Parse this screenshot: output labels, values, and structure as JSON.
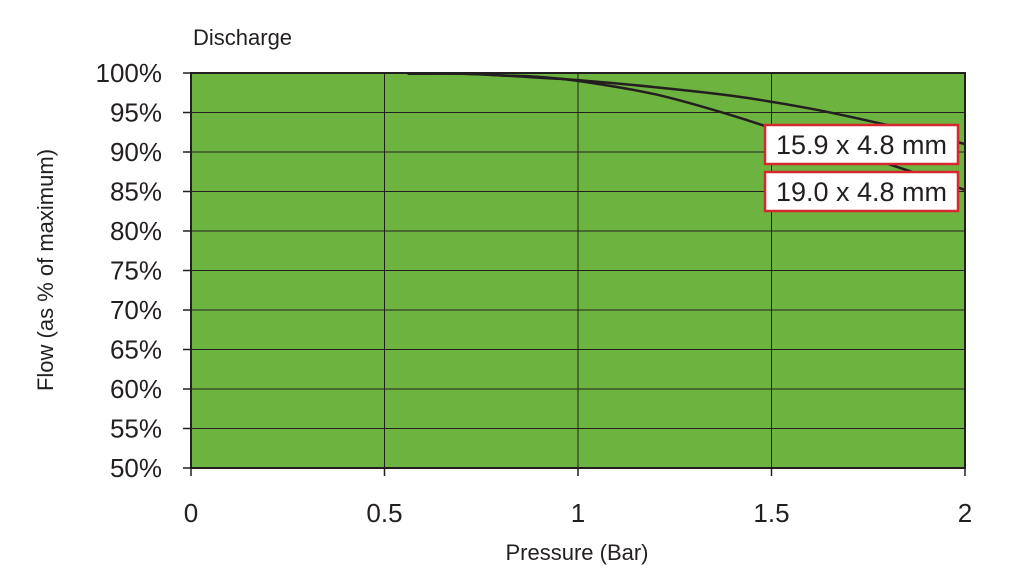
{
  "chart_data": {
    "type": "line",
    "title": "Discharge",
    "xlabel": "Pressure (Bar)",
    "ylabel": "Flow (as % of maximum)",
    "xlim": [
      0,
      2
    ],
    "ylim": [
      50,
      100
    ],
    "x_ticks": [
      0,
      0.5,
      1,
      1.5,
      2
    ],
    "x_tick_labels": [
      "0",
      "0.5",
      "1",
      "1.5",
      "2"
    ],
    "y_ticks": [
      100,
      95,
      90,
      85,
      80,
      75,
      70,
      65,
      60,
      55,
      50
    ],
    "y_tick_labels": [
      "100%",
      "95%",
      "90%",
      "85%",
      "80%",
      "75%",
      "70%",
      "65%",
      "60%",
      "55%",
      "50%"
    ],
    "grid": true,
    "colors": {
      "plot_background": "#6db33f",
      "line": "#231f20",
      "annotation_border": "#d7282f"
    },
    "series": [
      {
        "name": "15.9 x 4.8 mm",
        "x": [
          0.56,
          0.7,
          0.8,
          0.9,
          1.0,
          1.2,
          1.4,
          1.6,
          1.8,
          2.0
        ],
        "y": [
          99.9,
          99.9,
          99.7,
          99.4,
          99.1,
          98.2,
          97.1,
          95.5,
          93.4,
          91.0
        ]
      },
      {
        "name": "19.0 x 4.8 mm",
        "x": [
          0.56,
          0.7,
          0.8,
          0.9,
          1.0,
          1.2,
          1.4,
          1.6,
          1.8,
          2.0
        ],
        "y": [
          99.9,
          99.9,
          99.7,
          99.5,
          99.0,
          97.3,
          94.6,
          91.4,
          88.5,
          85.2
        ]
      }
    ],
    "annotations": [
      "15.9 x 4.8 mm",
      "19.0 x 4.8 mm"
    ]
  }
}
